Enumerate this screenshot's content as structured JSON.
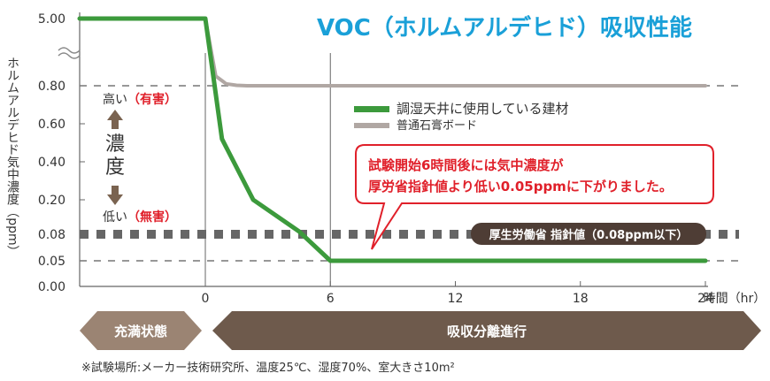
{
  "chart_data": {
    "type": "line",
    "title": "VOC（ホルムアルデヒド）吸収性能",
    "ylabel": "ホルムアルデヒド気中濃度（ppm）",
    "xunit": "時間（hr）",
    "x_ticks": [
      "0",
      "6",
      "12",
      "18",
      "24"
    ],
    "y_ticks": [
      "5.00",
      "0.80",
      "0.60",
      "0.40",
      "0.20",
      "0.08",
      "0.05",
      "0.00"
    ],
    "xlim": [
      -6,
      24
    ],
    "series": [
      {
        "name": "調湿天井に使用している建材",
        "color": "#3c9a3c",
        "x": [
          -6,
          0,
          0.8,
          2.3,
          4.5,
          6,
          24
        ],
        "y": [
          5.0,
          5.0,
          0.52,
          0.2,
          0.09,
          0.05,
          0.05
        ]
      },
      {
        "name": "普通石膏ボード",
        "color": "#b0a7a3",
        "x": [
          -6,
          0,
          0.5,
          1,
          1.5,
          2,
          24
        ],
        "y": [
          5.0,
          5.0,
          1.4,
          0.92,
          0.83,
          0.8,
          0.8
        ]
      }
    ],
    "reference": {
      "label": "厚生労働省 指針値（0.08ppm以下）",
      "value": 0.08
    },
    "legend": "upper-center",
    "grid": false
  },
  "scale_labels": {
    "high": "高い",
    "high_note": "（有害）",
    "concentration": [
      "濃",
      "度"
    ],
    "low": "低い",
    "low_note": "（無害）"
  },
  "callout": {
    "line1": "試験開始6時間後には気中濃度が",
    "line2": "厚労省指針値より低い0.05ppmに下がりました。"
  },
  "phases": {
    "saturated": "充満状態",
    "absorbing": "吸収分離進行"
  },
  "footnote": "※試験場所:メーカー技術研究所、温度25℃、湿度70%、室大きさ10m²",
  "colors": {
    "accent_title": "#1aa0d8",
    "red": "#e0202a",
    "arrow_brown": "#7a6350",
    "phase_light": "#9b8473",
    "phase_dark": "#6e5a4c",
    "reference_dots": "#666666"
  }
}
